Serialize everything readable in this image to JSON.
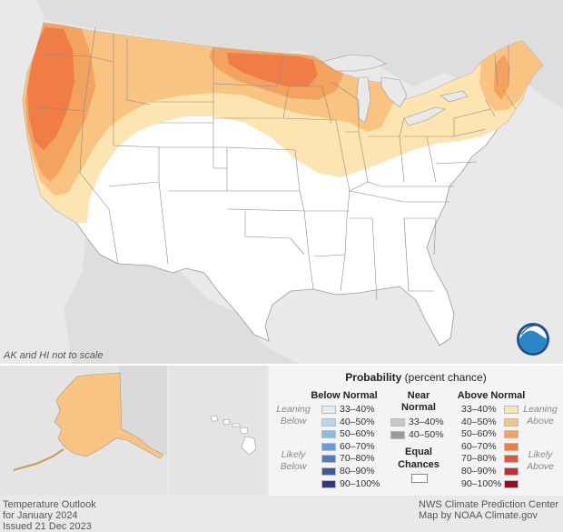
{
  "map": {
    "scale_note": "AK and HI not to scale",
    "colors": {
      "background": "#e9e9e9",
      "equal_chances": "#ffffff",
      "above_33_40": "#fce5b0",
      "above_40_50": "#f9c482",
      "above_50_60": "#f4a25f",
      "above_60_70": "#ef7d45"
    },
    "logo": "noaa-logo"
  },
  "footer": {
    "left_line1": "Temperature Outlook",
    "left_line2": "for January 2024",
    "left_line3": "Issued 21 Dec 2023",
    "right_line1": "NWS Climate Prediction Center",
    "right_line2": "Map by NOAA Climate.gov"
  },
  "legend": {
    "title_bold": "Probability",
    "title_rest": " (percent chance)",
    "below": {
      "heading": "Below Normal",
      "items": [
        {
          "label": "33–40%",
          "color": "#dbeef9"
        },
        {
          "label": "40–50%",
          "color": "#b5d8f0"
        },
        {
          "label": "50–60%",
          "color": "#8bbde3"
        },
        {
          "label": "60–70%",
          "color": "#6a9dd3"
        },
        {
          "label": "70–80%",
          "color": "#4f7cc0"
        },
        {
          "label": "80–90%",
          "color": "#3a5aa8"
        },
        {
          "label": "90–100%",
          "color": "#2b3a8c"
        }
      ]
    },
    "near": {
      "heading_line1": "Near",
      "heading_line2": "Normal",
      "items": [
        {
          "label": "33–40%",
          "color": "#c8c8c8"
        },
        {
          "label": "40–50%",
          "color": "#9a9a9a"
        }
      ]
    },
    "equal": {
      "line1": "Equal",
      "line2": "Chances",
      "color": "#ffffff"
    },
    "above": {
      "heading": "Above Normal",
      "items": [
        {
          "label": "33–40%",
          "color": "#fce5b0"
        },
        {
          "label": "40–50%",
          "color": "#f9c482"
        },
        {
          "label": "50–60%",
          "color": "#f4a25f"
        },
        {
          "label": "60–70%",
          "color": "#ef7d45"
        },
        {
          "label": "70–80%",
          "color": "#e4533a"
        },
        {
          "label": "80–90%",
          "color": "#cc2b2b"
        },
        {
          "label": "90–100%",
          "color": "#9b0b1e"
        }
      ]
    },
    "side": {
      "leaning_below": [
        "Leaning",
        "Below"
      ],
      "likely_below": [
        "Likely",
        "Below"
      ],
      "leaning_above": [
        "Leaning",
        "Above"
      ],
      "likely_above": [
        "Likely",
        "Above"
      ]
    }
  }
}
